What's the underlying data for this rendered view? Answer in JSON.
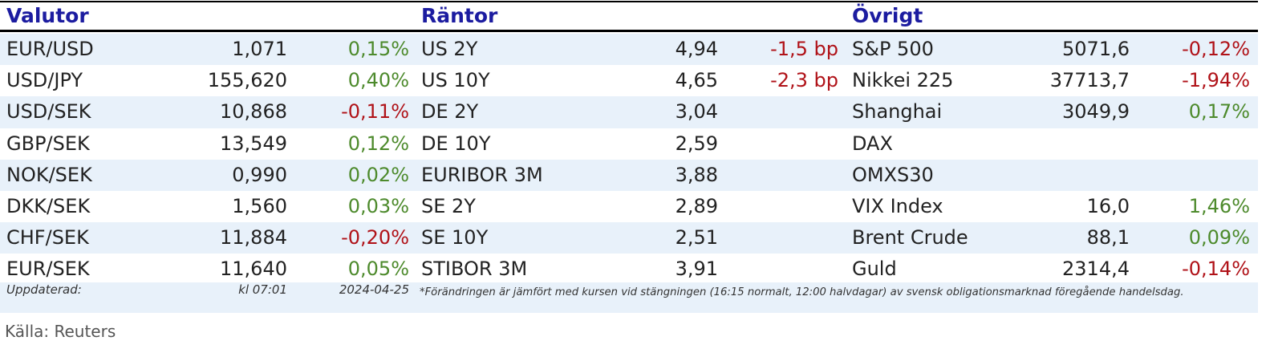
{
  "sections": [
    {
      "title": "Valutor",
      "rows": [
        [
          "EUR/USD",
          "1,071",
          "0,15%"
        ],
        [
          "USD/JPY",
          "155,620",
          "0,40%"
        ],
        [
          "USD/SEK",
          "10,868",
          "-0,11%"
        ],
        [
          "GBP/SEK",
          "13,549",
          "0,12%"
        ],
        [
          "NOK/SEK",
          "0,990",
          "0,02%"
        ],
        [
          "DKK/SEK",
          "1,560",
          "0,03%"
        ],
        [
          "CHF/SEK",
          "11,884",
          "-0,20%"
        ],
        [
          "EUR/SEK",
          "11,640",
          "0,05%"
        ]
      ]
    },
    {
      "title": "Räntor",
      "rows": [
        [
          "US 2Y",
          "4,94",
          "-1,5 bp"
        ],
        [
          "US 10Y",
          "4,65",
          "-2,3 bp"
        ],
        [
          "DE 2Y",
          "3,04",
          null
        ],
        [
          "DE 10Y",
          "2,59",
          null
        ],
        [
          "EURIBOR 3M",
          "3,88",
          null
        ],
        [
          "SE 2Y",
          "2,89",
          null
        ],
        [
          "SE 10Y",
          "2,51",
          null
        ],
        [
          "STIBOR 3M",
          "3,91",
          null
        ]
      ]
    },
    {
      "title": "Övrigt",
      "rows": [
        [
          "S&P 500",
          "5071,6",
          "-0,12%"
        ],
        [
          "Nikkei 225",
          "37713,7",
          "-1,94%"
        ],
        [
          "Shanghai",
          "3049,9",
          "0,17%"
        ],
        [
          "DAX",
          null,
          null
        ],
        [
          "OMXS30",
          null,
          null
        ],
        [
          "VIX Index",
          "16,0",
          "1,46%"
        ],
        [
          "Brent Crude",
          "88,1",
          "0,09%"
        ],
        [
          "Guld",
          "2314,4",
          "-0,14%"
        ]
      ]
    }
  ],
  "footer": {
    "updated_label": "Uppdaterad:",
    "time": "kl 07:01",
    "date": "2024-04-25",
    "note": "*Förändringen är jämfört med kursen vid stängningen (16:15 normalt, 12:00 halvdagar) av svensk obligationsmarknad föregående handelsdag."
  },
  "source": "Källa: Reuters"
}
